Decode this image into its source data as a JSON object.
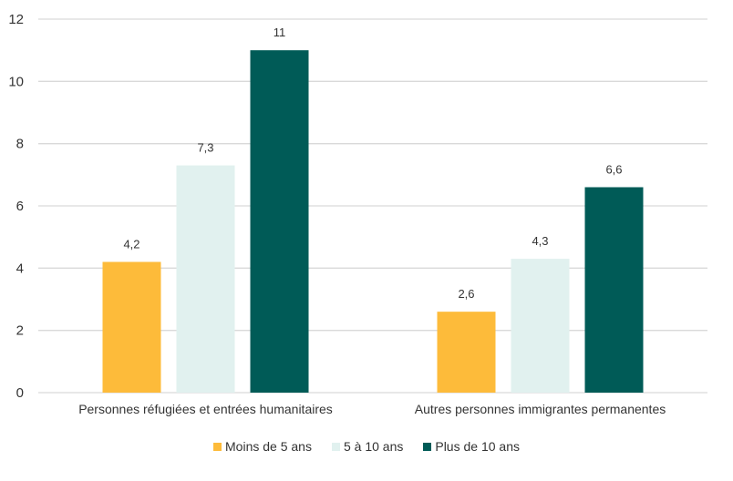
{
  "chart_data": {
    "type": "bar",
    "categories": [
      "Personnes réfugiées et entrées humanitaires",
      "Autres personnes immigrantes permanentes"
    ],
    "series": [
      {
        "name": "Moins de 5 ans",
        "values": [
          4.2,
          2.6
        ],
        "labels": [
          "4,2",
          "2,6"
        ],
        "color": "#FDBB3A"
      },
      {
        "name": "5 à 10 ans",
        "values": [
          7.3,
          4.3
        ],
        "labels": [
          "7,3",
          "4,3"
        ],
        "color": "#E1F1EF"
      },
      {
        "name": "Plus de 10 ans",
        "values": [
          11,
          6.6
        ],
        "labels": [
          "11",
          "6,6"
        ],
        "color": "#005B57"
      }
    ],
    "title": "",
    "xlabel": "",
    "ylabel": "",
    "ylim": [
      0,
      12
    ],
    "yticks": [
      0,
      2,
      4,
      6,
      8,
      10,
      12
    ],
    "grid": true,
    "legend_position": "bottom"
  }
}
